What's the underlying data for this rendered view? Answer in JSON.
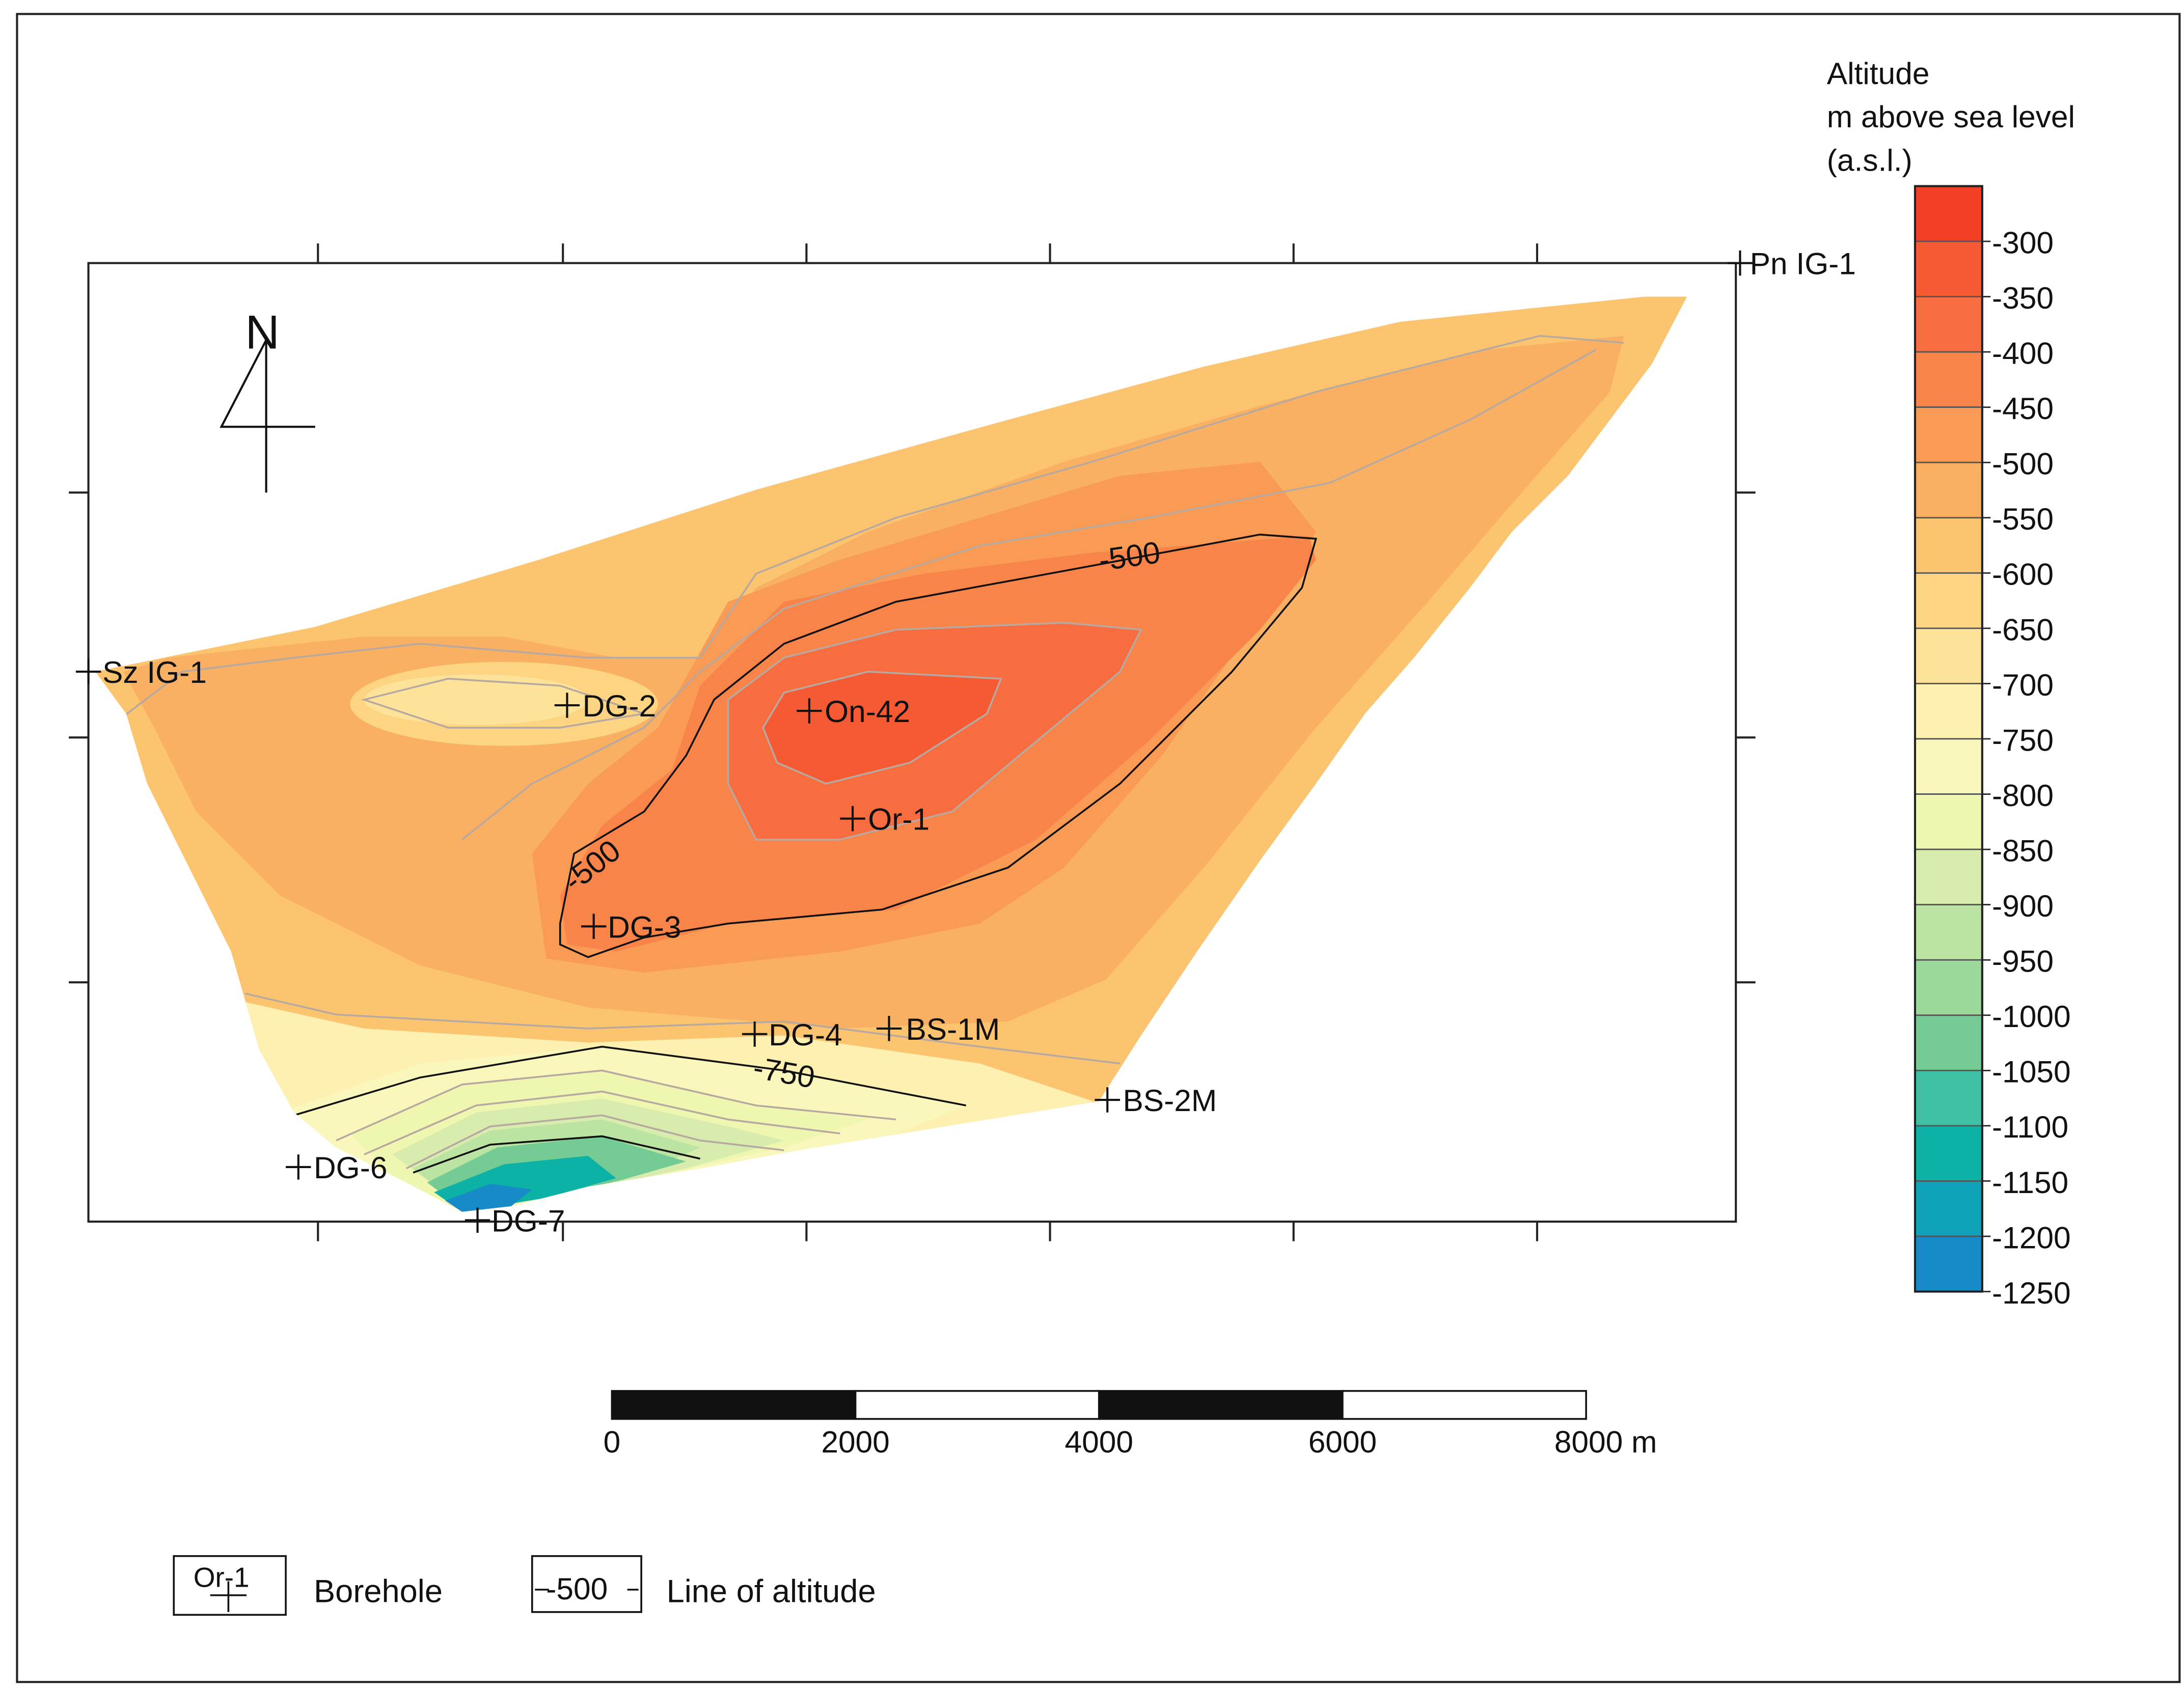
{
  "map": {
    "north_label": "N",
    "legend_title": [
      "Altitude",
      "m above sea level",
      "(a.s.l.)"
    ],
    "color_scale": {
      "labels": [
        "-300",
        "-350",
        "-400",
        "-450",
        "-500",
        "-550",
        "-600",
        "-650",
        "-700",
        "-750",
        "-800",
        "-850",
        "-900",
        "-950",
        "-1000",
        "-1050",
        "-1100",
        "-1150",
        "-1200",
        "-1250"
      ],
      "colors": [
        "#f33f27",
        "#f55a33",
        "#f76d3f",
        "#f8844a",
        "#f99a55",
        "#fab062",
        "#fcc46f",
        "#fdd582",
        "#fde39a",
        "#fdf0b0",
        "#f9f7bb",
        "#eef6b0",
        "#d7ecad",
        "#bbe3a2",
        "#9bd99a",
        "#74cc94",
        "#3fc0a4",
        "#0cb2a5",
        "#10a2b8",
        "#178bc8"
      ]
    },
    "boreholes": [
      {
        "name": "Pn IG-1"
      },
      {
        "name": "Sz IG-1"
      },
      {
        "name": "DG-2"
      },
      {
        "name": "On-42"
      },
      {
        "name": "Or-1"
      },
      {
        "name": "DG-3"
      },
      {
        "name": "DG-4"
      },
      {
        "name": "BS-1M"
      },
      {
        "name": "BS-2M"
      },
      {
        "name": "DG-6"
      },
      {
        "name": "DG-7"
      }
    ],
    "contour_labels": [
      "-500",
      "-500",
      "-750"
    ],
    "scale_bar": {
      "ticks": [
        "0",
        "2000",
        "4000",
        "6000",
        "8000 m"
      ]
    },
    "legend": {
      "borehole_sample": "Or-1",
      "borehole_label": "Borehole",
      "line_sample": "-500",
      "line_label": "Line of altitude"
    }
  }
}
